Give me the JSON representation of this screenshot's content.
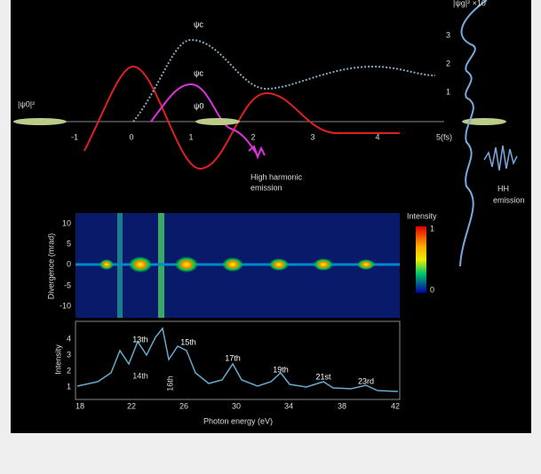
{
  "figure": {
    "top": {
      "psi0_sq": "|ψ0|²",
      "psig_sq": "|ψg|² ×10",
      "psic_upper": "ψc",
      "psic_lower": "ψc",
      "psi0": "ψ0",
      "time_ticks": [
        "-1",
        "0",
        "1",
        "2",
        "3",
        "4",
        "5(fs)"
      ],
      "right_ticks": [
        "3",
        "2",
        "1"
      ],
      "high_harmonic": [
        "High harmonic",
        "emission"
      ],
      "hh_emission": [
        "HH",
        "emission"
      ]
    },
    "heatmap": {
      "y_label": "Divergence (mrad)",
      "y_ticks": [
        "10",
        "5",
        "0",
        "-5",
        "-10"
      ],
      "colorbar_title": "Intensity",
      "colorbar_ticks": [
        "1",
        "0"
      ]
    },
    "spectrum": {
      "y_label": "Intensity",
      "y_ticks": [
        "4",
        "3",
        "2",
        "1"
      ],
      "x_label": "Photon energy (eV)",
      "x_ticks": [
        "18",
        "22",
        "26",
        "30",
        "34",
        "38",
        "42"
      ],
      "harmonics": [
        "13th",
        "15th",
        "17th",
        "19th",
        "21st",
        "23rd"
      ],
      "small_labels": [
        "14th",
        "16th"
      ]
    }
  }
}
